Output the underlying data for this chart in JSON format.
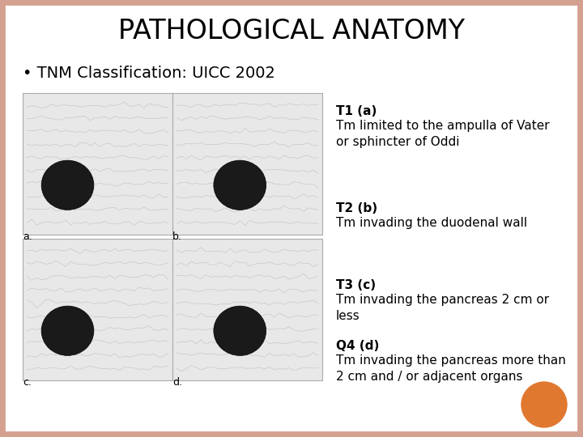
{
  "title": "PATHOLOGICAL ANATOMY",
  "bullet_text": "• TNM Classification: UICC 2002",
  "annotations": [
    {
      "label": "T1 (a)",
      "description": "Tm limited to the ampulla of Vater\nor sphincter of Oddi"
    },
    {
      "label": "T2 (b)",
      "description": "Tm invading the duodenal wall"
    },
    {
      "label": "T3 (c)",
      "description": "Tm invading the pancreas 2 cm or\nless"
    },
    {
      "label": "Q4 (d)",
      "description": "Tm invading the pancreas more than\n2 cm and / or adjacent organs"
    }
  ],
  "img_labels": [
    "a.",
    "b.",
    "c.",
    "d."
  ],
  "background_color": "#ffffff",
  "border_color": "#d4a090",
  "title_font_size": 24,
  "bullet_font_size": 14,
  "annotation_label_font_size": 11,
  "annotation_desc_font_size": 11,
  "orange_circle_color": "#e07830",
  "text_color": "#000000",
  "img_placeholder_color": "#e8e8e8",
  "img_border_color": "#aaaaaa"
}
